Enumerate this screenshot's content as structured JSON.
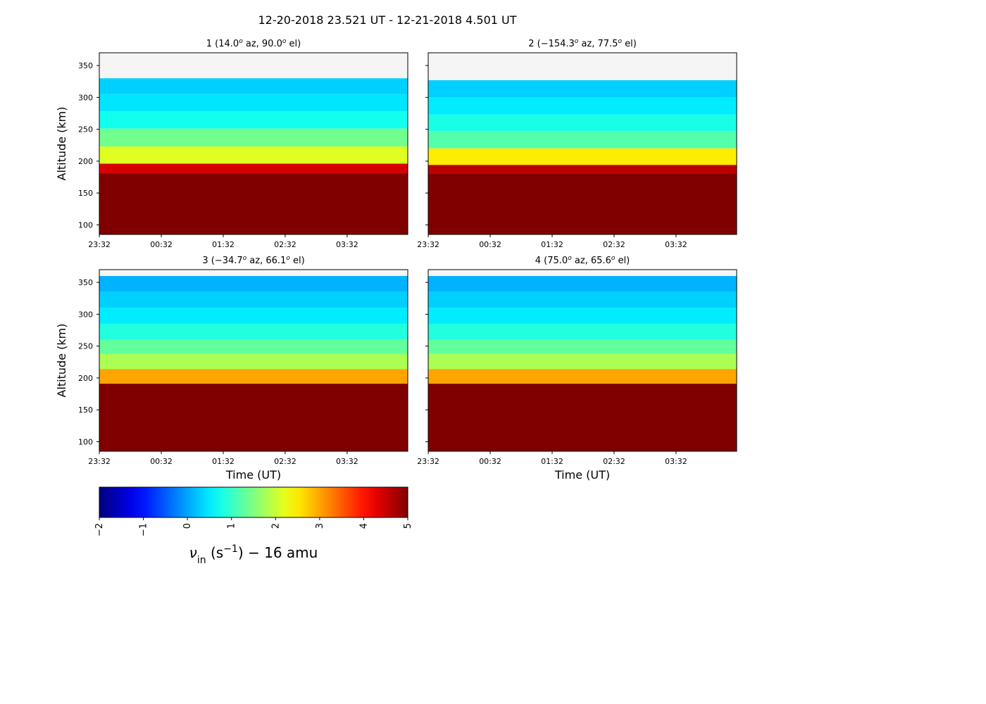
{
  "figure": {
    "suptitle": "12-20-2018 23.521 UT - 12-21-2018 4.501 UT"
  },
  "chart_data": [
    {
      "type": "heatmap",
      "title_num": "1",
      "title_az": "14.0",
      "title_el": "90.0",
      "xlabel": "",
      "ylabel": "Altitude (km)",
      "xticks": [
        "23:32",
        "00:32",
        "01:32",
        "02:32",
        "03:32"
      ],
      "yticks": [
        100,
        150,
        200,
        250,
        300,
        350
      ],
      "ylim": [
        85,
        370
      ],
      "xlim_hours": [
        23.521,
        28.501
      ],
      "layers": [
        {
          "alt": [
            330,
            370
          ],
          "value": null
        },
        {
          "alt": [
            305,
            330
          ],
          "value": 0.3
        },
        {
          "alt": [
            278,
            305
          ],
          "value": 0.45
        },
        {
          "alt": [
            251,
            278
          ],
          "value": 0.75
        },
        {
          "alt": [
            223,
            251
          ],
          "value": 1.4
        },
        {
          "alt": [
            196,
            223
          ],
          "value": 2.15
        },
        {
          "alt": [
            181,
            196
          ],
          "value": 4.4
        },
        {
          "alt": [
            85,
            181
          ],
          "value": 5
        }
      ]
    },
    {
      "type": "heatmap",
      "title_num": "2",
      "title_az": "−154.3",
      "title_el": "77.5",
      "xlabel": "",
      "ylabel": "",
      "xticks": [
        "23:32",
        "00:32",
        "01:32",
        "02:32",
        "03:32"
      ],
      "yticks": [
        100,
        150,
        200,
        250,
        300,
        350
      ],
      "ylim": [
        85,
        370
      ],
      "xlim_hours": [
        23.521,
        28.501
      ],
      "layers": [
        {
          "alt": [
            327,
            370
          ],
          "value": null
        },
        {
          "alt": [
            300,
            327
          ],
          "value": 0.3
        },
        {
          "alt": [
            273,
            300
          ],
          "value": 0.5
        },
        {
          "alt": [
            247,
            273
          ],
          "value": 0.8
        },
        {
          "alt": [
            220,
            247
          ],
          "value": 1.2
        },
        {
          "alt": [
            194,
            220
          ],
          "value": 2.5
        },
        {
          "alt": [
            181,
            194
          ],
          "value": 4.6
        },
        {
          "alt": [
            85,
            181
          ],
          "value": 5
        }
      ]
    },
    {
      "type": "heatmap",
      "title_num": "3",
      "title_az": "−34.7",
      "title_el": "66.1",
      "xlabel": "Time (UT)",
      "ylabel": "Altitude (km)",
      "xticks": [
        "23:32",
        "00:32",
        "01:32",
        "02:32",
        "03:32"
      ],
      "yticks": [
        100,
        150,
        200,
        250,
        300,
        350
      ],
      "ylim": [
        85,
        370
      ],
      "xlim_hours": [
        23.521,
        28.501
      ],
      "layers": [
        {
          "alt": [
            360,
            370
          ],
          "value": null
        },
        {
          "alt": [
            335,
            360
          ],
          "value": 0.1
        },
        {
          "alt": [
            310,
            335
          ],
          "value": 0.3
        },
        {
          "alt": [
            285,
            310
          ],
          "value": 0.5
        },
        {
          "alt": [
            260,
            285
          ],
          "value": 0.85
        },
        {
          "alt": [
            238,
            260
          ],
          "value": 1.3
        },
        {
          "alt": [
            214,
            238
          ],
          "value": 1.8
        },
        {
          "alt": [
            191,
            214
          ],
          "value": 3.0
        },
        {
          "alt": [
            85,
            191
          ],
          "value": 5
        }
      ]
    },
    {
      "type": "heatmap",
      "title_num": "4",
      "title_az": "75.0",
      "title_el": "65.6",
      "xlabel": "Time (UT)",
      "ylabel": "",
      "xticks": [
        "23:32",
        "00:32",
        "01:32",
        "02:32",
        "03:32"
      ],
      "yticks": [
        100,
        150,
        200,
        250,
        300,
        350
      ],
      "ylim": [
        85,
        370
      ],
      "xlim_hours": [
        23.521,
        28.501
      ],
      "layers": [
        {
          "alt": [
            360,
            370
          ],
          "value": null
        },
        {
          "alt": [
            335,
            360
          ],
          "value": 0.1
        },
        {
          "alt": [
            310,
            335
          ],
          "value": 0.3
        },
        {
          "alt": [
            285,
            310
          ],
          "value": 0.5
        },
        {
          "alt": [
            260,
            285
          ],
          "value": 0.85
        },
        {
          "alt": [
            238,
            260
          ],
          "value": 1.3
        },
        {
          "alt": [
            214,
            238
          ],
          "value": 1.8
        },
        {
          "alt": [
            191,
            214
          ],
          "value": 3.0
        },
        {
          "alt": [
            85,
            191
          ],
          "value": 5
        }
      ]
    }
  ],
  "colorbar": {
    "colormap": "jet",
    "range": [
      -2,
      5
    ],
    "ticks": [
      -2,
      -1,
      0,
      1,
      2,
      3,
      4,
      5
    ],
    "label_sym": "ν",
    "label_sub": "in",
    "label_units": "(s",
    "label_exp": "−1",
    "label_close": ")",
    "label_suffix": "− 16 amu"
  }
}
